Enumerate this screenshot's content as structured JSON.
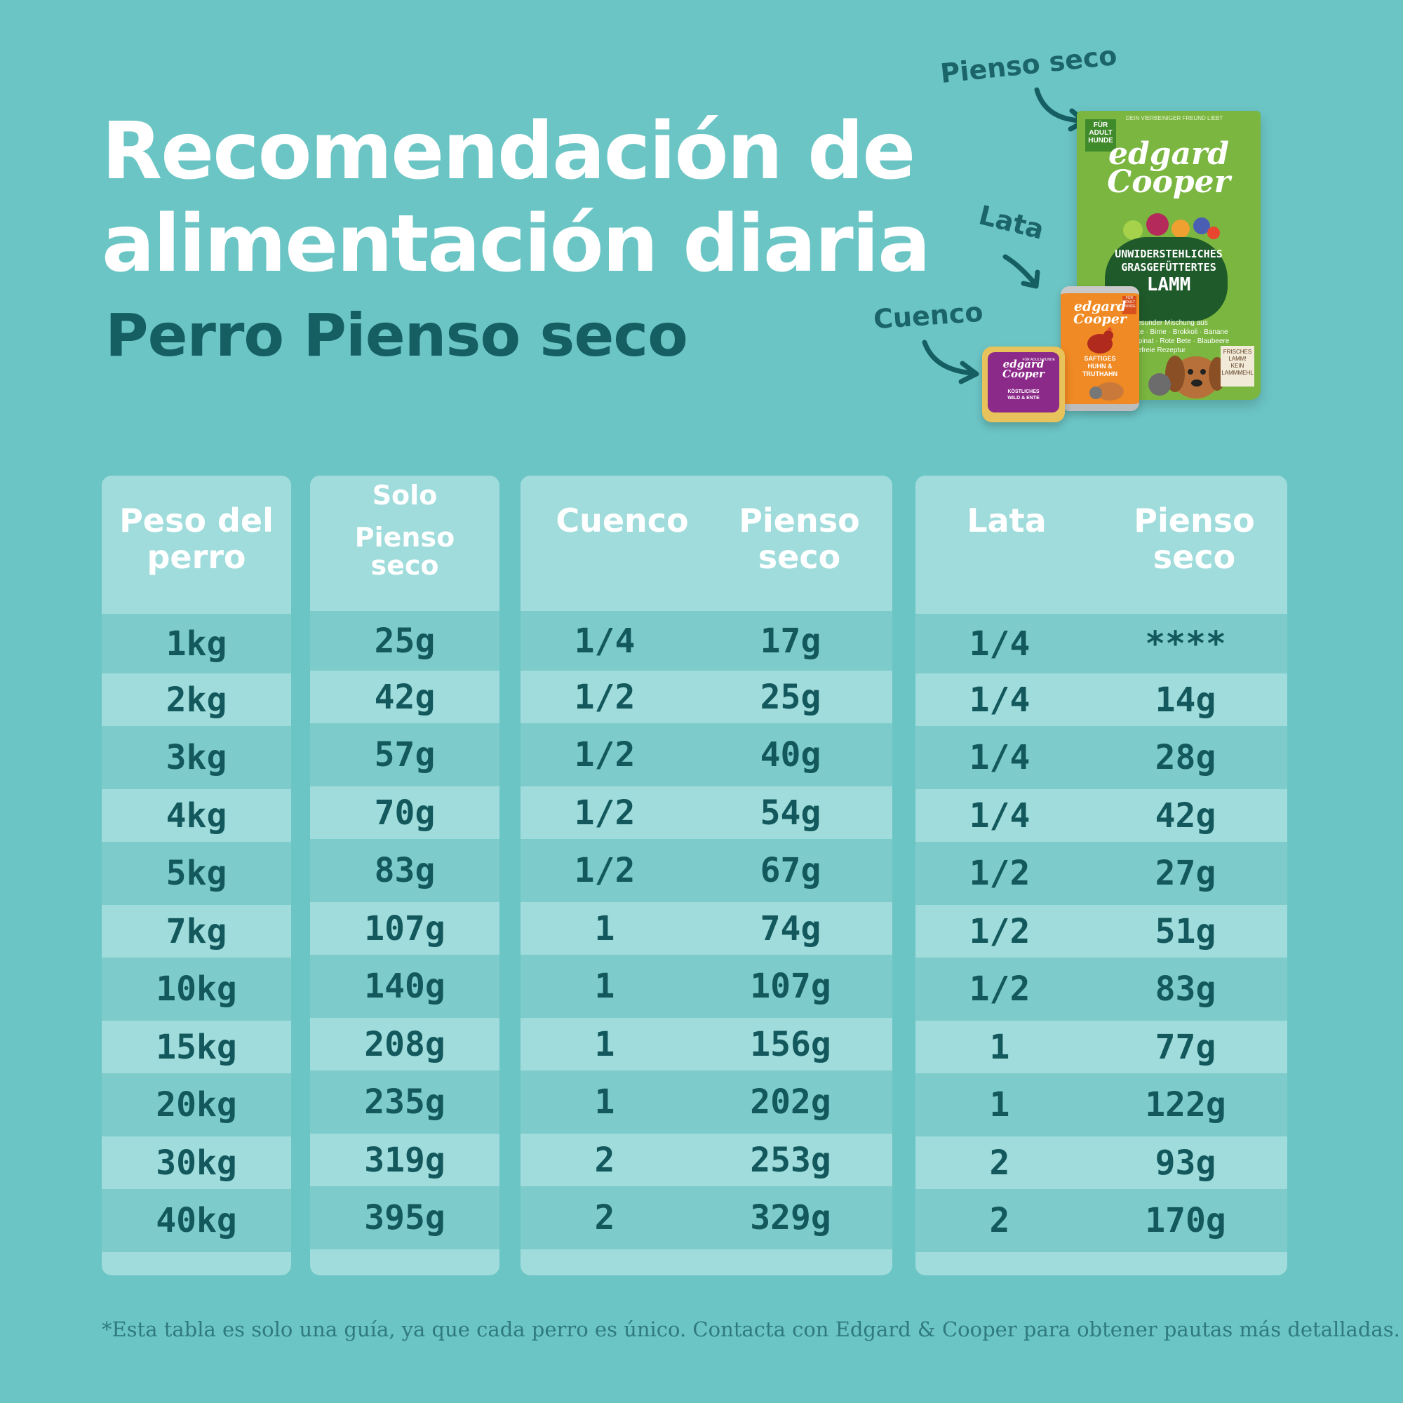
{
  "header": {
    "title_line1": "Recomendación de",
    "title_line2": "alimentación diaria",
    "subtitle": "Perro Pienso seco"
  },
  "products": {
    "label_dry": "Pienso seco",
    "label_can": "Lata",
    "label_bowl": "Cuenco",
    "bag": {
      "brand_line1": "edgard",
      "brand_line2": "Cooper",
      "corner_line1": "FÜR",
      "corner_line2": "ADULT",
      "corner_line3": "HUNDE",
      "top_text": "DEIN VIERBEINIGER FREUND LIEBT",
      "name_line1": "UNWIDERSTEHLICHES",
      "name_line2": "GRASGEFÜTTERTES",
      "name_line3": "LAMM",
      "desc_line1": "in gesunder Mischung aus",
      "desc_line2": "arotte · Birne · Brokkoli · Banane",
      "desc_line3": "l · Spinat · Rote Bete · Blaubeere",
      "desc_line4": "reidefreie Rezeptur",
      "sign_line1": "FRISCHES",
      "sign_line2": "LAMM!",
      "sign_line3": "KEIN",
      "sign_line4": "LAMMMEHL"
    },
    "can": {
      "brand_line1": "edgard",
      "brand_line2": "Cooper",
      "name_line1": "SAFTIGES",
      "name_line2": "HUHN &",
      "name_line3": "TRUTHAHN",
      "corner": "FÜR ADULT HUNDE"
    },
    "tray": {
      "brand_line1": "edgard",
      "brand_line2": "Cooper",
      "name_line1": "KÖSTLICHES",
      "name_line2": "WILD & ENTE",
      "corner": "FÜR ADULT HUNDE"
    }
  },
  "tables": {
    "weight": {
      "header_line1": "Peso del",
      "header_line2": "perro",
      "values": [
        "1kg",
        "2kg",
        "3kg",
        "4kg",
        "5kg",
        "7kg",
        "10kg",
        "15kg",
        "20kg",
        "30kg",
        "40kg"
      ]
    },
    "dry_only": {
      "header_line1": "Solo",
      "header_line2": "Pienso",
      "header_line3": "seco",
      "values": [
        "25g",
        "42g",
        "57g",
        "70g",
        "83g",
        "107g",
        "140g",
        "208g",
        "235g",
        "319g",
        "395g"
      ]
    },
    "bowl": {
      "header_a": "Cuenco",
      "header_b_line1": "Pienso",
      "header_b_line2": "seco",
      "bowl_values": [
        "1/4",
        "1/2",
        "1/2",
        "1/2",
        "1/2",
        "1",
        "1",
        "1",
        "1",
        "2",
        "2"
      ],
      "dry_values": [
        "17g",
        "25g",
        "40g",
        "54g",
        "67g",
        "74g",
        "107g",
        "156g",
        "202g",
        "253g",
        "329g"
      ]
    },
    "can": {
      "header_a": "Lata",
      "header_b_line1": "Pienso",
      "header_b_line2": "seco",
      "can_values": [
        "1/4",
        "1/4",
        "1/4",
        "1/4",
        "1/2",
        "1/2",
        "1/2",
        "1",
        "1",
        "2",
        "2"
      ],
      "dry_values": [
        "****",
        "14g",
        "28g",
        "42g",
        "27g",
        "51g",
        "83g",
        "77g",
        "122g",
        "93g",
        "170g"
      ]
    }
  },
  "footnote": "*Esta tabla es solo una guía, ya que cada perro es único. Contacta con Edgard & Cooper para obtener pautas más detalladas.",
  "colors": {
    "background": "#6cc5c5",
    "row_dark": "#7dcccb",
    "row_light": "#a0dcdb",
    "text_dark": "#13585d",
    "bag_green": "#7ab640",
    "can_orange": "#f08a24",
    "tray_purple": "#8c2a8a"
  }
}
